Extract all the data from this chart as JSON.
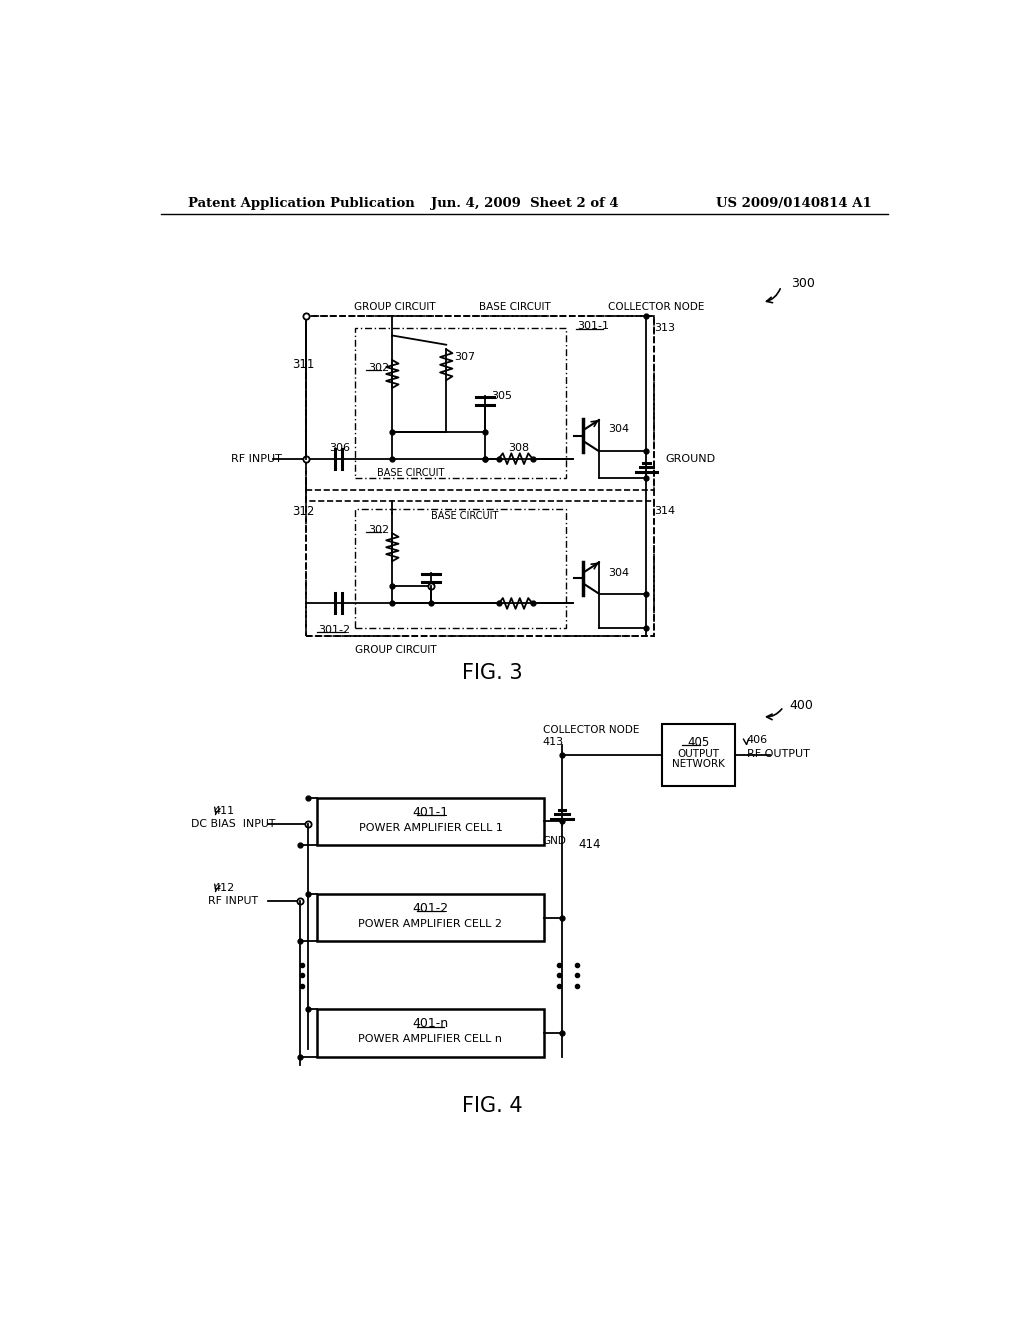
{
  "bg_color": "#ffffff",
  "header_left": "Patent Application Publication",
  "header_mid": "Jun. 4, 2009  Sheet 2 of 4",
  "header_right": "US 2009/0140814 A1"
}
